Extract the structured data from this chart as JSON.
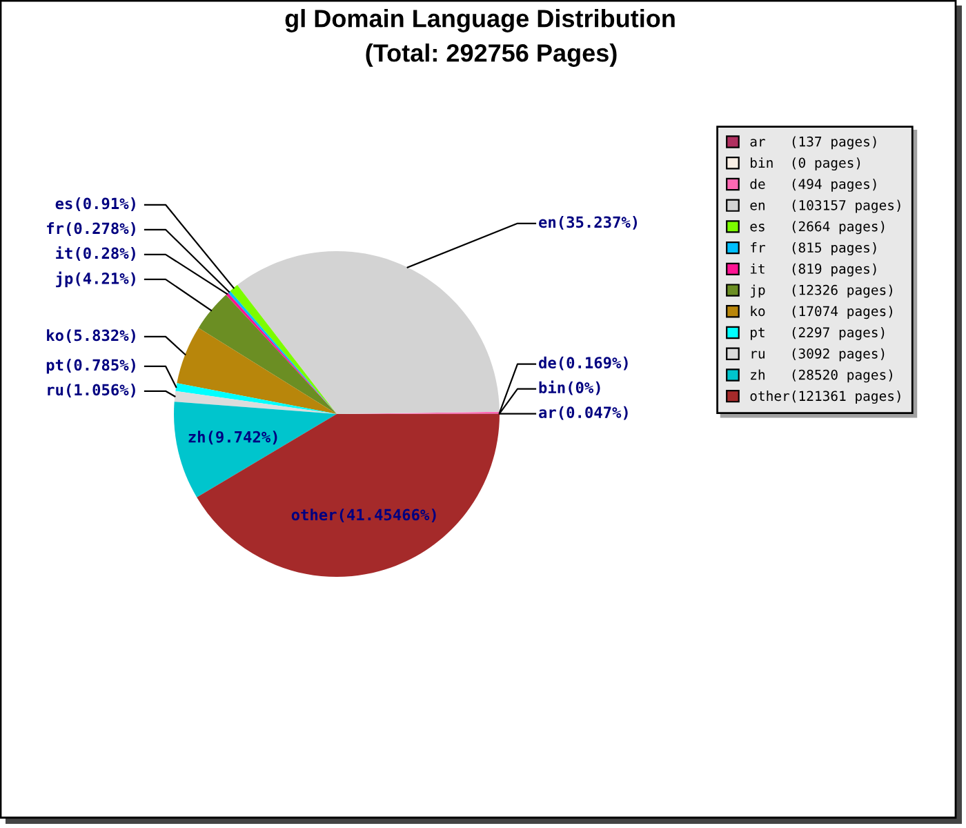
{
  "chart_data": {
    "type": "pie",
    "title": "gl Domain Language Distribution",
    "subtitle": "(Total: 292756 Pages)",
    "categories": [
      "ar   (137 pages)",
      "bin  (0 pages)",
      "de   (494 pages)",
      "en   (103157 pages)",
      "es   (2664 pages)",
      "fr   (815 pages)",
      "it   (819 pages)",
      "jp   (12326 pages)",
      "ko   (17074 pages)",
      "pt   (2297 pages)",
      "ru   (3092 pages)",
      "zh   (28520 pages)",
      "other(121361 pages)"
    ],
    "values": [
      137,
      0,
      494,
      103157,
      2664,
      815,
      819,
      12326,
      17074,
      2297,
      3092,
      28520,
      121361
    ],
    "value_labels": [
      "ar(0.047%)",
      "bin(0%)",
      "de(0.169%)",
      "en(35.237%)",
      "es(0.91%)",
      "fr(0.278%)",
      "it(0.28%)",
      "jp(4.21%)",
      "ko(5.832%)",
      "pt(0.785%)",
      "ru(1.056%)",
      "zh(9.742%)",
      "other(41.45466%)"
    ],
    "colors": [
      "#b03060",
      "#faf0e6",
      "#ff69b4",
      "#d3d3d3",
      "#7cfc00",
      "#00bfff",
      "#ff1493",
      "#6b8e23",
      "#b8860b",
      "#00ffff",
      "#dcdcdc",
      "#00c5cd",
      "#a52a2a"
    ],
    "legend": "top right"
  }
}
